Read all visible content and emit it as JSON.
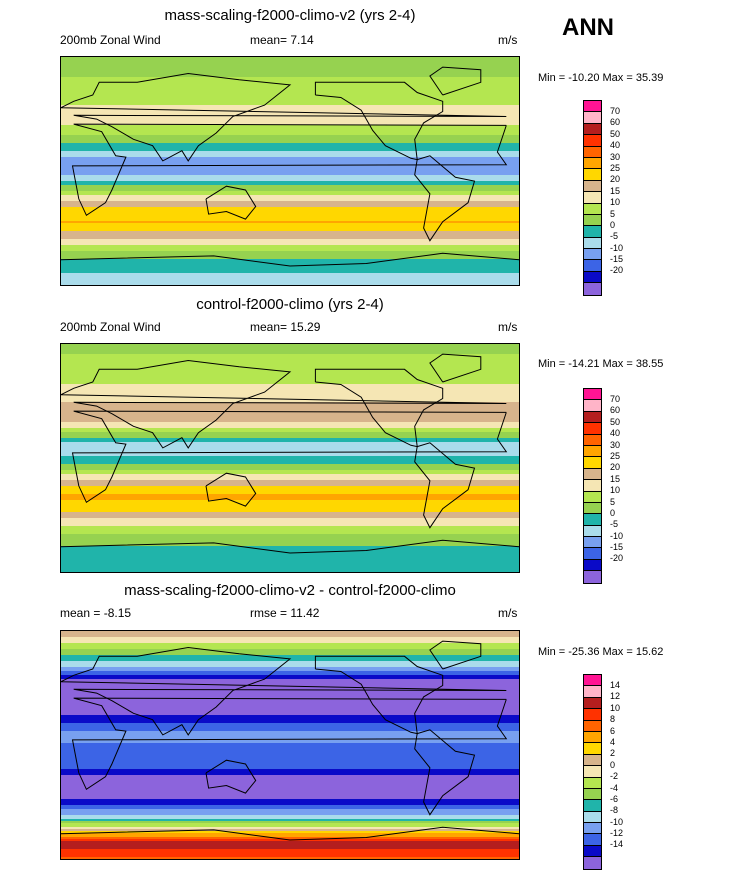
{
  "season": "ANN",
  "colors": {
    "abs": [
      "#8c64dc",
      "#0a0ac8",
      "#3c64e6",
      "#78a0f0",
      "#aadceb",
      "#20b4aa",
      "#96d250",
      "#b4e650",
      "#f5e6b4",
      "#d7b48c",
      "#ffd700",
      "#ffa500",
      "#ff6400",
      "#ff3200",
      "#b41e1e",
      "#ffb4c8",
      "#ff1493"
    ],
    "diff": [
      "#8c64dc",
      "#0a0ac8",
      "#3c64e6",
      "#78a0f0",
      "#aadceb",
      "#20b4aa",
      "#96d250",
      "#b4e650",
      "#f5e6b4",
      "#d7b48c",
      "#ffd700",
      "#ffa500",
      "#ff6400",
      "#ff3200",
      "#b41e1e",
      "#ffb4c8",
      "#ff1493"
    ]
  },
  "chart_data": [
    {
      "type": "heatmap",
      "title": "mass-scaling-f2000-climo-v2 (yrs 2-4)",
      "left_label": "200mb Zonal Wind",
      "center_label": "mean=  7.14",
      "units": "m/s",
      "minmax": "Min = -10.20 Max =  35.39",
      "levels": [
        -20,
        -15,
        -10,
        -5,
        0,
        5,
        10,
        15,
        20,
        25,
        30,
        40,
        50,
        60,
        70
      ],
      "levels_text": [
        "70",
        "60",
        "50",
        "40",
        "30",
        "25",
        "20",
        "15",
        "10",
        "5",
        "0",
        "-5",
        "-10",
        "-15",
        "-20"
      ],
      "lat_bands": [
        {
          "lat": 90,
          "value": 5
        },
        {
          "lat": 70,
          "value": 8
        },
        {
          "lat": 55,
          "value": 12
        },
        {
          "lat": 40,
          "value": 18
        },
        {
          "lat": 28,
          "value": 12
        },
        {
          "lat": 15,
          "value": 2
        },
        {
          "lat": 5,
          "value": -8
        },
        {
          "lat": -5,
          "value": -4
        },
        {
          "lat": -15,
          "value": 8
        },
        {
          "lat": -28,
          "value": 22
        },
        {
          "lat": -40,
          "value": 28
        },
        {
          "lat": -52,
          "value": 22
        },
        {
          "lat": -65,
          "value": 10
        },
        {
          "lat": -80,
          "value": 3
        },
        {
          "lat": -90,
          "value": 1
        }
      ]
    },
    {
      "type": "heatmap",
      "title": "control-f2000-climo (yrs 2-4)",
      "left_label": "200mb Zonal Wind",
      "center_label": "mean=  15.29",
      "units": "m/s",
      "minmax": "Min = -14.21 Max =  38.55",
      "levels": [
        -20,
        -15,
        -10,
        -5,
        0,
        5,
        10,
        15,
        20,
        25,
        30,
        40,
        50,
        60,
        70
      ],
      "levels_text": [
        "70",
        "60",
        "50",
        "40",
        "30",
        "25",
        "20",
        "15",
        "10",
        "5",
        "0",
        "-5",
        "-10",
        "-15",
        "-20"
      ],
      "lat_bands": [
        {
          "lat": 90,
          "value": 4
        },
        {
          "lat": 75,
          "value": 10
        },
        {
          "lat": 60,
          "value": 14
        },
        {
          "lat": 45,
          "value": 22
        },
        {
          "lat": 32,
          "value": 27
        },
        {
          "lat": 20,
          "value": 12
        },
        {
          "lat": 8,
          "value": -6
        },
        {
          "lat": -5,
          "value": 2
        },
        {
          "lat": -18,
          "value": 18
        },
        {
          "lat": -30,
          "value": 30
        },
        {
          "lat": -42,
          "value": 27
        },
        {
          "lat": -55,
          "value": 16
        },
        {
          "lat": -68,
          "value": 8
        },
        {
          "lat": -82,
          "value": 3
        },
        {
          "lat": -90,
          "value": 1
        }
      ]
    },
    {
      "type": "heatmap",
      "title": "mass-scaling-f2000-climo-v2 - control-f2000-climo",
      "left_label": "mean =  -8.15",
      "center_label": "rmse =  11.42",
      "units": "m/s",
      "minmax": "Min = -25.36 Max =  15.62",
      "levels": [
        -14,
        -12,
        -10,
        -8,
        -6,
        -4,
        -2,
        0,
        2,
        4,
        6,
        8,
        10,
        12,
        14
      ],
      "levels_text": [
        "14",
        "12",
        "10",
        "8",
        "6",
        "4",
        "2",
        "0",
        "-2",
        "-4",
        "-6",
        "-8",
        "-10",
        "-12",
        "-14"
      ],
      "lat_bands": [
        {
          "lat": 90,
          "value": 1
        },
        {
          "lat": 75,
          "value": -3
        },
        {
          "lat": 62,
          "value": -6
        },
        {
          "lat": 50,
          "value": -12
        },
        {
          "lat": 35,
          "value": -16
        },
        {
          "lat": 20,
          "value": -14
        },
        {
          "lat": 8,
          "value": -12
        },
        {
          "lat": -5,
          "value": -14
        },
        {
          "lat": -18,
          "value": -12
        },
        {
          "lat": -30,
          "value": -16
        },
        {
          "lat": -45,
          "value": -10
        },
        {
          "lat": -58,
          "value": -4
        },
        {
          "lat": -68,
          "value": 4
        },
        {
          "lat": -78,
          "value": 12
        },
        {
          "lat": -90,
          "value": 6
        }
      ]
    }
  ]
}
